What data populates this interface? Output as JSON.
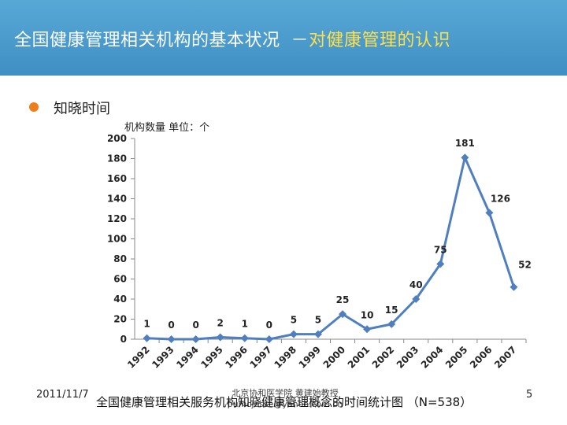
{
  "header": {
    "title_main": "全国健康管理相关机构的基本状况",
    "title_sep": "－",
    "title_highlight": "对健康管理的认识"
  },
  "section": {
    "subtitle": "知晓时间"
  },
  "colors": {
    "header": "#4a9bd0",
    "accent": "#ffe04a",
    "bullet": "#ef7d1a",
    "series": "#4f7fbf"
  },
  "chart_data": {
    "type": "line",
    "ylabel": "机构数量 单位：个",
    "x": [
      "1992",
      "1993",
      "1994",
      "1995",
      "1996",
      "1997",
      "1998",
      "1999",
      "2000",
      "2001",
      "2002",
      "2003",
      "2004",
      "2005",
      "2006",
      "2007"
    ],
    "series": [
      {
        "values": [
          1,
          0,
          0,
          2,
          1,
          0,
          5,
          5,
          25,
          10,
          15,
          40,
          75,
          181,
          126,
          52
        ]
      }
    ],
    "ylim": [
      0,
      200
    ],
    "yticks": [
      0,
      20,
      40,
      60,
      80,
      100,
      120,
      140,
      160,
      180,
      200
    ],
    "grid": false,
    "data_labels": true
  },
  "footer": {
    "date": "2011/11/7",
    "source_line1": "北京协和医学院 黄建始教授",
    "source_line2": "pumcjesse@yahoo.com.cn",
    "caption": "全国健康管理相关服务机构知晓健康管理概念的时间统计图 （N=538）",
    "page": "5"
  }
}
